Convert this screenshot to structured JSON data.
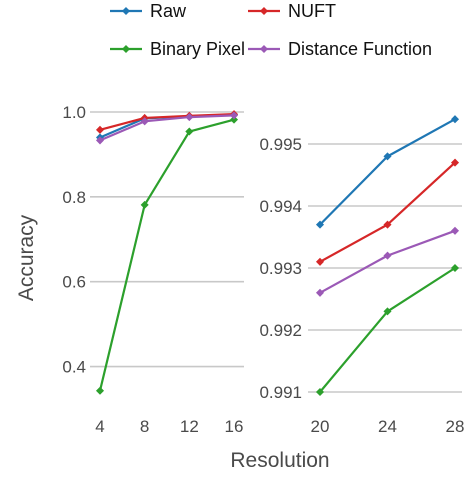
{
  "chart_data": {
    "type": "line",
    "title": "",
    "xlabel": "Resolution",
    "ylabel": "Accuracy",
    "legend": {
      "placement": "top",
      "entries": [
        "Raw",
        "NUFT",
        "Binary Pixel",
        "Distance Function"
      ]
    },
    "series_colors": {
      "Raw": "#1f77b4",
      "NUFT": "#d62728",
      "Binary Pixel": "#2ca02c",
      "Distance Function": "#9b59b6"
    },
    "panels": [
      {
        "x": [
          4,
          8,
          12,
          16
        ],
        "x_ticks": [
          "4",
          "8",
          "12",
          "16"
        ],
        "ylim": [
          0.34,
          1.0
        ],
        "y_ticks": [
          0.4,
          0.6,
          0.8,
          1.0
        ],
        "y_tick_labels": [
          "0.4",
          "0.6",
          "0.8",
          "1.0"
        ],
        "grid": true,
        "series": [
          {
            "name": "Raw",
            "values": [
              0.94,
              0.985,
              0.99,
              0.994
            ]
          },
          {
            "name": "NUFT",
            "values": [
              0.958,
              0.986,
              0.991,
              0.995
            ]
          },
          {
            "name": "Binary Pixel",
            "values": [
              0.343,
              0.781,
              0.954,
              0.982
            ]
          },
          {
            "name": "Distance Function",
            "values": [
              0.933,
              0.978,
              0.988,
              0.992
            ]
          }
        ]
      },
      {
        "x": [
          20,
          24,
          28
        ],
        "x_ticks": [
          "20",
          "24",
          "28"
        ],
        "ylim": [
          0.991,
          0.9955
        ],
        "y_ticks": [
          0.991,
          0.992,
          0.993,
          0.994,
          0.995
        ],
        "y_tick_labels": [
          "0.991",
          "0.992",
          "0.993",
          "0.994",
          "0.995"
        ],
        "grid": true,
        "series": [
          {
            "name": "Raw",
            "values": [
              0.9937,
              0.9948,
              0.9954
            ]
          },
          {
            "name": "NUFT",
            "values": [
              0.9931,
              0.9937,
              0.9947
            ]
          },
          {
            "name": "Binary Pixel",
            "values": [
              0.991,
              0.9923,
              0.993
            ]
          },
          {
            "name": "Distance Function",
            "values": [
              0.9926,
              0.9932,
              0.9936
            ]
          }
        ]
      }
    ]
  }
}
